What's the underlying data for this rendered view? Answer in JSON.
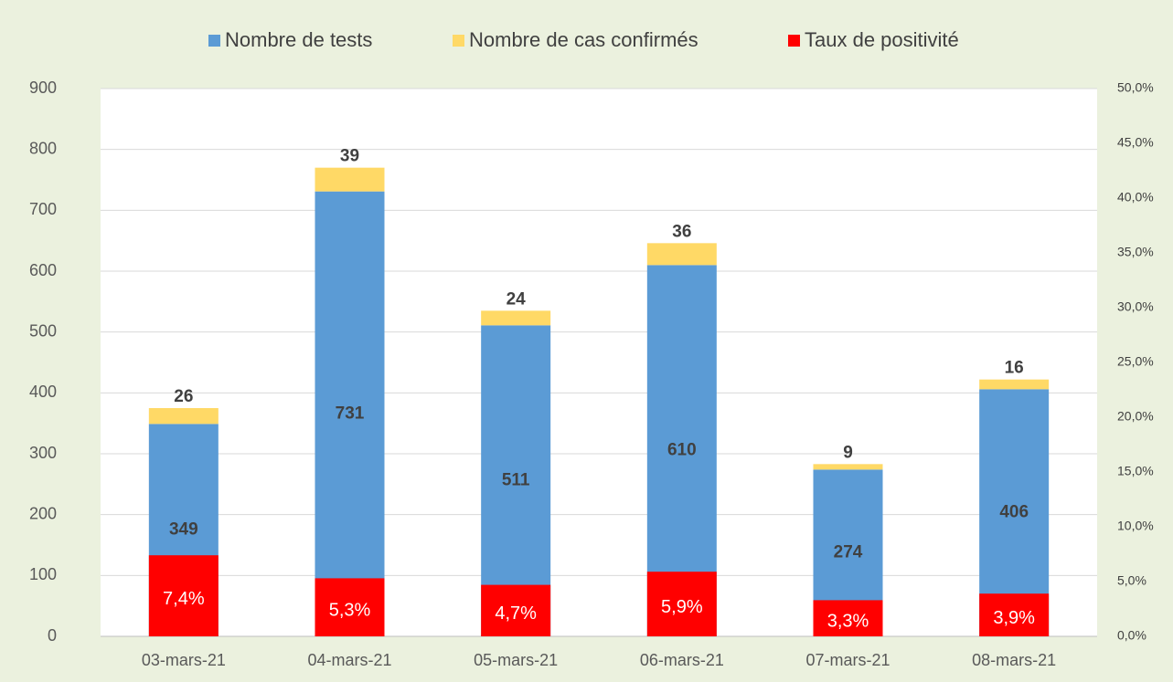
{
  "chart_data": {
    "type": "stacked_bar",
    "categories": [
      "03-mars-21",
      "04-mars-21",
      "05-mars-21",
      "06-mars-21",
      "07-mars-21",
      "08-mars-21"
    ],
    "series": [
      {
        "name": "Nombre de tests",
        "color": "#5b9bd5",
        "values": [
          349,
          731,
          511,
          610,
          274,
          406
        ]
      },
      {
        "name": "Nombre de cas confirmés",
        "color": "#ffd966",
        "values": [
          26,
          39,
          24,
          36,
          9,
          16
        ]
      },
      {
        "name": "Taux de positivité",
        "color": "#ff0000",
        "axis": "y2",
        "values": [
          7.4,
          5.3,
          4.7,
          5.9,
          3.3,
          3.9
        ],
        "value_labels": [
          "7,4%",
          "5,3%",
          "4,7%",
          "5,9%",
          "3,3%",
          "3,9%"
        ]
      }
    ],
    "ylim": [
      0,
      900
    ],
    "yticks": [
      0,
      100,
      200,
      300,
      400,
      500,
      600,
      700,
      800,
      900
    ],
    "y2lim": [
      0,
      50
    ],
    "y2ticks": [
      {
        "value": 0,
        "label": "0,0%"
      },
      {
        "value": 5,
        "label": "5,0%"
      },
      {
        "value": 10,
        "label": "10,0%"
      },
      {
        "value": 15,
        "label": "15,0%"
      },
      {
        "value": 20,
        "label": "20,0%"
      },
      {
        "value": 25,
        "label": "25,0%"
      },
      {
        "value": 30,
        "label": "30,0%"
      },
      {
        "value": 35,
        "label": "35,0%"
      },
      {
        "value": 40,
        "label": "40,0%"
      },
      {
        "value": 45,
        "label": "45,0%"
      },
      {
        "value": 50,
        "label": "50,0%"
      }
    ],
    "grid": true,
    "legend": "top"
  }
}
